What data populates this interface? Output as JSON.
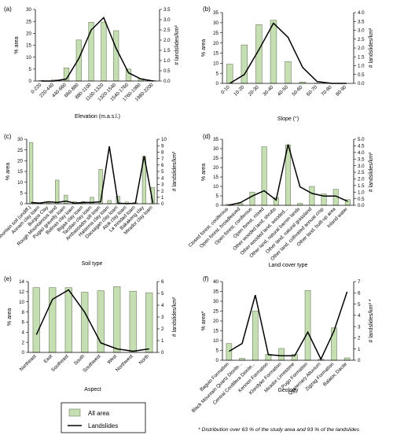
{
  "legend": {
    "bar_label": "All area",
    "line_label": "Landslides"
  },
  "footnote": "* Distribution over 63 % of the study area and 93 % of the landslides",
  "chart_data": [
    {
      "panel": "(a)",
      "type": "bar",
      "overlay": "line",
      "xlabel": "Elevation (m.a.s.l.)",
      "ylabel": "% area",
      "y2label": "# landslides/km²",
      "ylim": [
        0,
        30
      ],
      "yticks": [
        0,
        5,
        10,
        15,
        20,
        25,
        30
      ],
      "y2lim": [
        0,
        3.5
      ],
      "y2ticks": [
        0,
        0.5,
        1,
        1.5,
        2,
        2.5,
        3,
        3.5
      ],
      "y2_decimals": 1,
      "categories": [
        "0-220",
        "220-440",
        "440-660",
        "660-880",
        "880-1100",
        "1100-1320",
        "1320-1540",
        "1540-1760",
        "1760-1980",
        "1980-2200"
      ],
      "series": [
        {
          "name": "All area",
          "values": [
            0.2,
            0.5,
            5.5,
            17.2,
            24.6,
            24.7,
            21.1,
            5,
            1,
            0.2
          ]
        },
        {
          "name": "Landslides",
          "values": [
            0,
            0,
            0.1,
            1.1,
            2.5,
            3.1,
            1.6,
            0.4,
            0.1,
            0
          ]
        }
      ]
    },
    {
      "panel": "(b)",
      "type": "bar",
      "overlay": "line",
      "xlabel": "Slope (°)",
      "ylabel": "% area",
      "y2label": "# landslides/km²",
      "ylim": [
        0,
        35
      ],
      "yticks": [
        0,
        5,
        10,
        15,
        20,
        25,
        30,
        35
      ],
      "y2lim": [
        0,
        4
      ],
      "y2ticks": [
        0,
        0.5,
        1,
        1.5,
        2,
        2.5,
        3,
        3.5,
        4
      ],
      "y2_decimals": 1,
      "categories": [
        "0-10",
        "10-20",
        "20-30",
        "30-40",
        "40-50",
        "50-60",
        "60-70",
        "70-80",
        "80-90"
      ],
      "series": [
        {
          "name": "All area",
          "values": [
            9.5,
            19,
            29,
            31.2,
            10.8,
            0.7,
            0.1,
            0,
            0
          ]
        },
        {
          "name": "Landslides",
          "values": [
            0,
            0.5,
            1.9,
            3.4,
            2.6,
            0.9,
            0.1,
            0,
            0
          ]
        }
      ]
    },
    {
      "panel": "(c)",
      "type": "bar",
      "overlay": "line",
      "xlabel": "Soil type",
      "ylabel": "% area",
      "y2label": "# landslides/km²",
      "ylim": [
        0,
        30
      ],
      "yticks": [
        0,
        5,
        10,
        15,
        20,
        25,
        30
      ],
      "y2lim": [
        0,
        10
      ],
      "y2ticks": [
        0,
        1,
        2,
        3,
        4,
        5,
        6,
        7,
        8,
        9,
        10
      ],
      "y2_decimals": 0,
      "categories": [
        "Mountain soil (undiff.)",
        "Annam clay loam",
        "Burgos Clay",
        "Rough Mountainous land",
        "Pugao gravelly loam",
        "Bolinao clay loam",
        "Bigaa clay loam",
        "Tacdian clay loam",
        "Ambassador silt loam",
        "Halsema clay loam",
        "Dacsagan clay loam",
        "Atok clay loam",
        "La trinidad loam",
        "Bakakeng clay",
        "Mirador clay loam"
      ],
      "series": [
        {
          "name": "All area",
          "values": [
            28.5,
            0.5,
            1,
            11,
            4,
            1,
            1,
            3,
            16,
            1.5,
            3.5,
            0.8,
            0.5,
            22,
            7.5
          ]
        },
        {
          "name": "Landslides",
          "values": [
            0.2,
            0.1,
            0.3,
            0.2,
            0.4,
            0.1,
            0.2,
            0.2,
            0.3,
            8.9,
            0.1,
            0,
            0.1,
            7.4,
            0.1
          ]
        }
      ]
    },
    {
      "panel": "(d)",
      "type": "bar",
      "overlay": "line",
      "xlabel": "Land cover type",
      "ylabel": "% area",
      "y2label": "# landslides/km²",
      "ylim": [
        0,
        35
      ],
      "yticks": [
        0,
        5,
        10,
        15,
        20,
        25,
        30,
        35
      ],
      "y2lim": [
        0,
        5
      ],
      "y2ticks": [
        0,
        0.5,
        1,
        1.5,
        2,
        2.5,
        3,
        3.5,
        4,
        4.5,
        5
      ],
      "y2_decimals": 1,
      "categories": [
        "Closed forest, coniferous",
        "Open forest, broadleaved",
        "Open forest, coniferous",
        "Open forest, mixed",
        "Other wooded land, shrubs",
        "Other wooded land, wooded...",
        "Other land, natural barren lands",
        "Other land, natural grassland",
        "Other land, cultivated annual crop",
        "Other land, built-up area",
        "Inland water"
      ],
      "series": [
        {
          "name": "All area",
          "values": [
            0.5,
            1,
            7,
            31,
            4,
            32,
            1,
            10,
            6,
            8.5,
            3
          ]
        },
        {
          "name": "Landslides",
          "values": [
            0,
            0.2,
            0.7,
            1.1,
            0.4,
            4.6,
            1.4,
            0.9,
            0.7,
            0.7,
            0.3
          ]
        }
      ]
    },
    {
      "panel": "(e)",
      "type": "bar",
      "overlay": "line",
      "xlabel": "Aspect",
      "ylabel": "% area",
      "y2label": "# landslides/km²",
      "ylim": [
        0,
        14
      ],
      "yticks": [
        0,
        2,
        4,
        6,
        8,
        10,
        12,
        14
      ],
      "y2lim": [
        0,
        6
      ],
      "y2ticks": [
        0,
        1,
        2,
        3,
        4,
        5,
        6
      ],
      "y2_decimals": 0,
      "categories": [
        "Northeast",
        "East",
        "Southeast",
        "South",
        "Southwest",
        "West",
        "Northwest",
        "North"
      ],
      "series": [
        {
          "name": "All area",
          "values": [
            12.8,
            12.8,
            12.8,
            11.9,
            12.2,
            13,
            12.1,
            11.8
          ]
        },
        {
          "name": "Landslides",
          "values": [
            1.5,
            4.5,
            5.3,
            3.4,
            0.8,
            0.3,
            0.1,
            0.3
          ]
        }
      ]
    },
    {
      "panel": "(f)",
      "type": "bar",
      "overlay": "line",
      "xlabel": "Geology",
      "ylabel": "% area*",
      "y2label": "# landslides/km² *",
      "ylim": [
        0,
        40
      ],
      "yticks": [
        0,
        5,
        10,
        15,
        20,
        25,
        30,
        35,
        40
      ],
      "y2lim": [
        0,
        7
      ],
      "y2ticks": [
        0,
        1,
        2,
        3,
        4,
        5,
        6,
        7
      ],
      "y2_decimals": 0,
      "categories": [
        "Baguio Formation",
        "Black Mountain Quartz Diorite...",
        "Central Cordillera Diorite...",
        "Kennon Formation",
        "Klondyke Formation",
        "Mirador Limestone",
        "Pugo Formation",
        "Quaternary Alluvium",
        "Zigzag Formation",
        "Balatoc Dacite"
      ],
      "series": [
        {
          "name": "All area",
          "values": [
            8.5,
            1,
            25,
            3,
            6,
            3,
            35.5,
            0.5,
            16.5,
            1.2
          ]
        },
        {
          "name": "Landslides",
          "values": [
            0.8,
            1.5,
            5.8,
            0.5,
            0.4,
            0.4,
            2.5,
            0.1,
            2.6,
            6.1
          ]
        }
      ]
    }
  ]
}
